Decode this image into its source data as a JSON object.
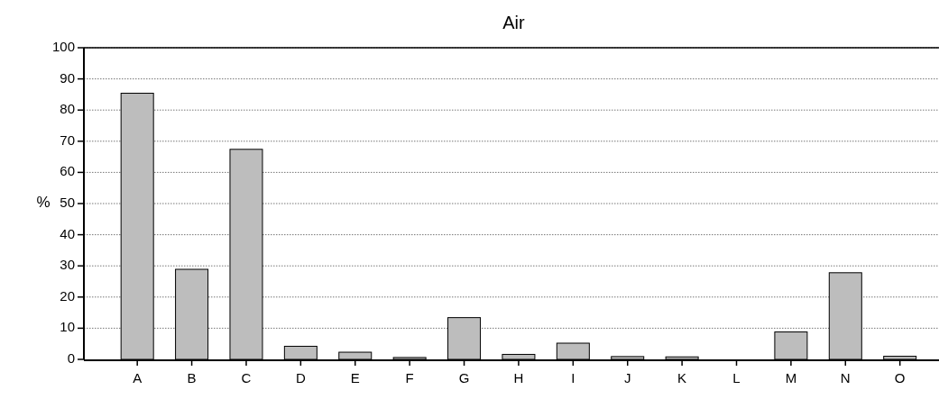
{
  "chart_data": {
    "type": "bar",
    "title": "Air",
    "ylabel": "%",
    "categories": [
      "A",
      "B",
      "C",
      "D",
      "E",
      "F",
      "G",
      "H",
      "I",
      "J",
      "K",
      "L",
      "M",
      "N",
      "O"
    ],
    "values": [
      85.4,
      28.9,
      67.4,
      4.2,
      2.3,
      0.6,
      13.4,
      1.6,
      5.2,
      0.9,
      0.8,
      0,
      8.8,
      27.8,
      1.0
    ],
    "color": "#bdbdbd",
    "ylim": [
      0,
      100
    ],
    "yticks": [
      0,
      10,
      20,
      30,
      40,
      50,
      60,
      70,
      80,
      90,
      100
    ],
    "grid": "y"
  }
}
